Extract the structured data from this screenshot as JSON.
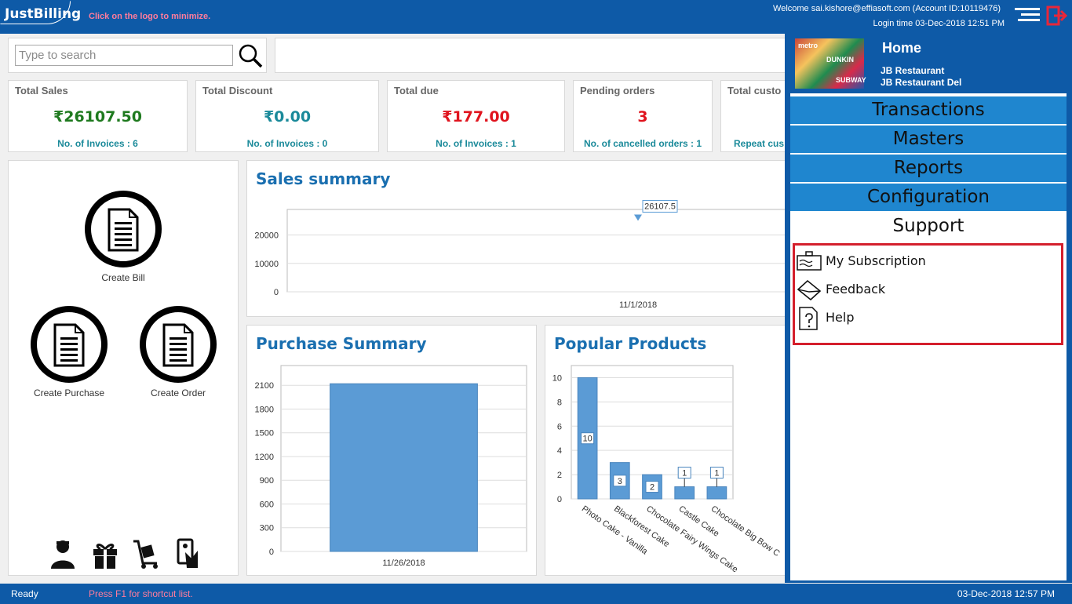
{
  "header": {
    "logo_text": "JustBilling",
    "minimize_hint": "Click on the logo to minimize.",
    "welcome": "Welcome sai.kishore@effiasoft.com (Account ID:10119476)",
    "login_time": "Login time  03-Dec-2018 12:51 PM"
  },
  "search": {
    "placeholder": "Type to search"
  },
  "cards": [
    {
      "title": "Total Sales",
      "value": "₹26107.50",
      "foot": "No. of Invoices : 6",
      "color": "#1f7a1f"
    },
    {
      "title": "Total Discount",
      "value": "₹0.00",
      "foot": "No. of Invoices : 0",
      "color": "#1b8a9a"
    },
    {
      "title": "Total due",
      "value": "₹177.00",
      "foot": "No. of Invoices : 1",
      "color": "#e0141e"
    },
    {
      "title": "Pending orders",
      "value": "3",
      "foot": "No. of cancelled orders : 1",
      "color": "#e0141e"
    },
    {
      "title": "Total custo",
      "value": "",
      "foot": "Repeat cus",
      "color": "#1b8a9a"
    }
  ],
  "actions": {
    "create_bill": "Create Bill",
    "create_purchase": "Create Purchase",
    "create_order": "Create Order"
  },
  "bottom_icons": [
    "customer-icon",
    "gift-icon",
    "delivery-trolley-icon",
    "card-payment-icon"
  ],
  "charts": {
    "sales_title": "Sales summary",
    "purchase_title": "Purchase Summary",
    "popular_title": "Popular Products"
  },
  "chart_data": [
    {
      "type": "line",
      "title": "Sales summary",
      "x": [
        "11/1/2018"
      ],
      "series": [
        {
          "values": [
            26107.5
          ]
        }
      ],
      "data_labels": [
        "26107.5"
      ],
      "yticks": [
        0,
        10000,
        20000
      ],
      "ylim": [
        0,
        29000
      ],
      "grid": true
    },
    {
      "type": "bar",
      "title": "Purchase Summary",
      "categories": [
        "11/26/2018"
      ],
      "values": [
        2120
      ],
      "yticks": [
        0,
        300,
        600,
        900,
        1200,
        1500,
        1800,
        2100
      ],
      "ylim": [
        0,
        2350
      ],
      "grid": true
    },
    {
      "type": "bar",
      "title": "Popular Products",
      "categories": [
        "Photo Cake - Vanilla",
        "Blackforest Cake",
        "Chocolate Fairy Wings Cake",
        "Castle Cake",
        "Chocolate Big Bow C"
      ],
      "values": [
        10,
        3,
        2,
        1,
        1
      ],
      "data_labels": [
        "10",
        "3",
        "2",
        "1",
        "1"
      ],
      "yticks": [
        0,
        2,
        4,
        6,
        8,
        10
      ],
      "ylim": [
        0,
        11
      ],
      "grid": true
    }
  ],
  "menu": {
    "home": "Home",
    "store_1": "JB Restaurant",
    "store_2": "JB Restaurant Del",
    "items": [
      "Transactions",
      "Masters",
      "Reports",
      "Configuration",
      "Support"
    ],
    "support_links": [
      "My Subscription",
      "Feedback",
      "Help"
    ]
  },
  "status": {
    "ready": "Ready",
    "hint": "Press F1 for shortcut list.",
    "time": "03-Dec-2018 12:57 PM"
  },
  "colors": {
    "brand_blue": "#0e5aa7",
    "menu_blue": "#1f86cf",
    "bar_blue": "#5b9bd5",
    "highlight_red": "#d41f2c"
  }
}
